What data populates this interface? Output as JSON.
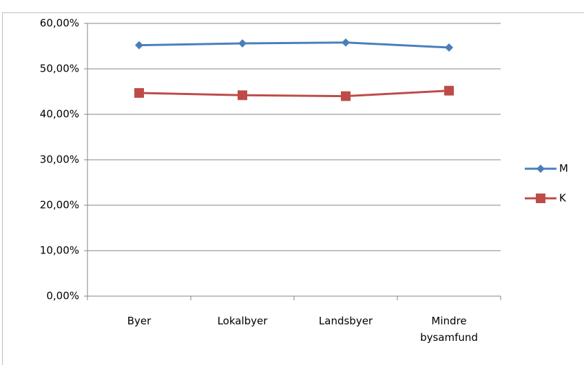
{
  "chart_data": {
    "type": "line",
    "categories": [
      "Byer",
      "Lokalbyer",
      "Landsbyer",
      "Mindre bysamfund"
    ],
    "series": [
      {
        "name": "M",
        "color": "#4a7ebb",
        "values": [
          55.2,
          55.6,
          55.8,
          54.7
        ]
      },
      {
        "name": "K",
        "color": "#be4b48",
        "values": [
          44.7,
          44.2,
          44.0,
          45.2
        ]
      }
    ],
    "ylim": [
      0,
      60
    ],
    "yticks": [
      {
        "value": 0,
        "label": "0,00%"
      },
      {
        "value": 10,
        "label": "10,00%"
      },
      {
        "value": 20,
        "label": "20,00%"
      },
      {
        "value": 30,
        "label": "30,00%"
      },
      {
        "value": 40,
        "label": "40,00%"
      },
      {
        "value": 50,
        "label": "50,00%"
      },
      {
        "value": 60,
        "label": "60,00%"
      }
    ],
    "grid": true,
    "legend": "right"
  }
}
